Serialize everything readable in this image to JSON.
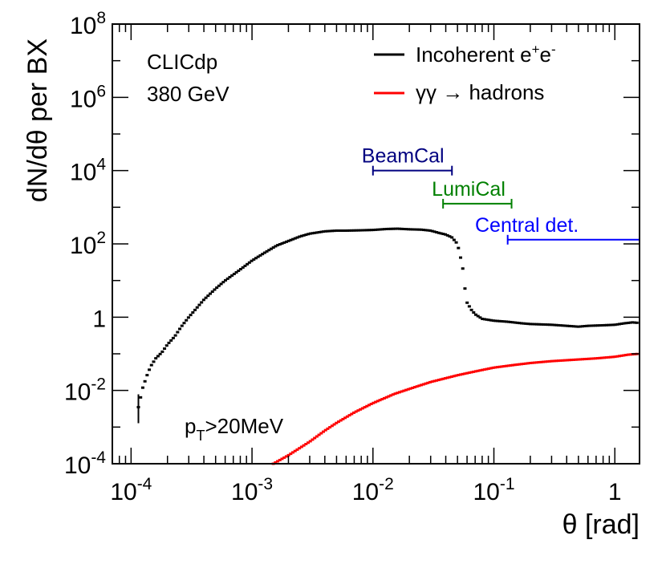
{
  "chart_data": {
    "type": "scatter",
    "xscale": "log",
    "yscale": "log",
    "xlim": [
      7e-05,
      1.6
    ],
    "ylim": [
      0.0001,
      100000000
    ],
    "xlabel": "θ [rad]",
    "ylabel": "dN/dθ per BX",
    "x_ticks": [
      {
        "value": 0.0001,
        "base": "10",
        "exp": "-4"
      },
      {
        "value": 0.001,
        "base": "10",
        "exp": "-3"
      },
      {
        "value": 0.01,
        "base": "10",
        "exp": "-2"
      },
      {
        "value": 0.1,
        "base": "10",
        "exp": "-1"
      },
      {
        "value": 1,
        "base": "1",
        "exp": ""
      }
    ],
    "y_ticks": [
      {
        "value": 0.0001,
        "base": "10",
        "exp": "-4"
      },
      {
        "value": 0.01,
        "base": "10",
        "exp": "-2"
      },
      {
        "value": 1,
        "base": "1",
        "exp": ""
      },
      {
        "value": 100,
        "base": "10",
        "exp": "2"
      },
      {
        "value": 10000,
        "base": "10",
        "exp": "4"
      },
      {
        "value": 1000000,
        "base": "10",
        "exp": "6"
      },
      {
        "value": 100000000,
        "base": "10",
        "exp": "8"
      }
    ],
    "annotations": {
      "experiment": "CLICdp",
      "energy": "380 GeV",
      "cut_p": "p",
      "cut_sub": "T",
      "cut_rest": ">20MeV"
    },
    "legend": {
      "placement": "top-right",
      "entries": [
        {
          "name": "Incoherent e",
          "sup1": "+",
          "mid": "e",
          "sup2": "-",
          "color": "#000000"
        },
        {
          "name": "γγ → hadrons",
          "color": "#ff0000"
        }
      ]
    },
    "ranges": [
      {
        "label": "BeamCal",
        "x_min": 0.01,
        "x_max": 0.045,
        "y": 10000,
        "color": "#000080"
      },
      {
        "label": "LumiCal",
        "x_min": 0.038,
        "x_max": 0.14,
        "y": 1250,
        "color": "#008000"
      },
      {
        "label": "Central det.",
        "x_min": 0.13,
        "x_max": 1.6,
        "y": 130,
        "color": "#0000ff"
      }
    ],
    "series": [
      {
        "name": "Incoherent e+e-",
        "color": "#000000",
        "points": [
          [
            0.000115,
            0.0035
          ],
          [
            0.000125,
            0.012
          ],
          [
            0.000135,
            0.025
          ],
          [
            0.000145,
            0.045
          ],
          [
            0.00016,
            0.075
          ],
          [
            0.00018,
            0.11
          ],
          [
            0.0002,
            0.18
          ],
          [
            0.00023,
            0.3
          ],
          [
            0.00026,
            0.55
          ],
          [
            0.0003,
            1.0
          ],
          [
            0.00035,
            1.8
          ],
          [
            0.0004,
            3.0
          ],
          [
            0.0005,
            6.0
          ],
          [
            0.0006,
            10
          ],
          [
            0.0008,
            20
          ],
          [
            0.001,
            35
          ],
          [
            0.0013,
            60
          ],
          [
            0.0016,
            90
          ],
          [
            0.002,
            120
          ],
          [
            0.0025,
            160
          ],
          [
            0.003,
            190
          ],
          [
            0.004,
            220
          ],
          [
            0.005,
            230
          ],
          [
            0.006,
            230
          ],
          [
            0.008,
            235
          ],
          [
            0.01,
            240
          ],
          [
            0.013,
            255
          ],
          [
            0.016,
            260
          ],
          [
            0.02,
            250
          ],
          [
            0.025,
            245
          ],
          [
            0.03,
            230
          ],
          [
            0.035,
            200
          ],
          [
            0.04,
            180
          ],
          [
            0.045,
            150
          ],
          [
            0.05,
            100
          ],
          [
            0.055,
            25
          ],
          [
            0.058,
            5
          ],
          [
            0.06,
            2.5
          ],
          [
            0.065,
            1.6
          ],
          [
            0.07,
            1.2
          ],
          [
            0.08,
            0.9
          ],
          [
            0.1,
            0.8
          ],
          [
            0.13,
            0.75
          ],
          [
            0.17,
            0.68
          ],
          [
            0.2,
            0.65
          ],
          [
            0.3,
            0.62
          ],
          [
            0.4,
            0.58
          ],
          [
            0.5,
            0.55
          ],
          [
            0.6,
            0.58
          ],
          [
            0.8,
            0.6
          ],
          [
            1.0,
            0.62
          ],
          [
            1.2,
            0.68
          ],
          [
            1.4,
            0.72
          ],
          [
            1.55,
            0.7
          ]
        ]
      },
      {
        "name": "γγ → hadrons",
        "color": "#ff0000",
        "points": [
          [
            0.0015,
            0.0001
          ],
          [
            0.002,
            0.00017
          ],
          [
            0.003,
            0.0004
          ],
          [
            0.004,
            0.0008
          ],
          [
            0.005,
            0.0013
          ],
          [
            0.007,
            0.0025
          ],
          [
            0.01,
            0.0045
          ],
          [
            0.015,
            0.008
          ],
          [
            0.02,
            0.011
          ],
          [
            0.03,
            0.017
          ],
          [
            0.05,
            0.026
          ],
          [
            0.07,
            0.033
          ],
          [
            0.1,
            0.042
          ],
          [
            0.15,
            0.05
          ],
          [
            0.2,
            0.056
          ],
          [
            0.3,
            0.063
          ],
          [
            0.5,
            0.07
          ],
          [
            0.7,
            0.075
          ],
          [
            1.0,
            0.083
          ],
          [
            1.3,
            0.095
          ],
          [
            1.6,
            0.1
          ]
        ]
      }
    ]
  }
}
